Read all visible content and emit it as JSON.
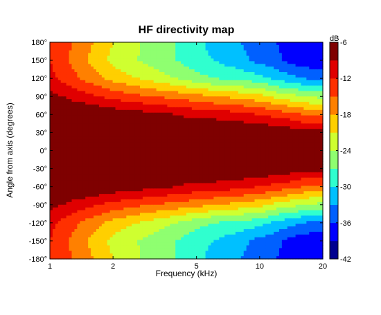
{
  "chart_data": {
    "type": "heatmap",
    "title": "HF directivity map",
    "xlabel": "Frequency (kHz)",
    "ylabel": "Angle from axis (degrees)",
    "x_scale": "log",
    "xlim": [
      1,
      20
    ],
    "ylim": [
      -180,
      180
    ],
    "x_ticks": [
      1,
      2,
      5,
      10,
      20
    ],
    "x_tick_labels": [
      "1",
      "2",
      "5",
      "10",
      "20"
    ],
    "y_ticks": [
      180,
      150,
      120,
      90,
      60,
      30,
      0,
      -30,
      -60,
      -90,
      -120,
      -150,
      -180
    ],
    "y_tick_labels": [
      "180°",
      "150°",
      "120°",
      "90°",
      "60°",
      "30°",
      "0°",
      "-30°",
      "-60°",
      "-90°",
      "-120°",
      "-150°",
      "-180°"
    ],
    "colorbar": {
      "unit": "dB",
      "range": [
        -42,
        -6
      ],
      "ticks": [
        -6,
        -12,
        -18,
        -24,
        -30,
        -36,
        -42
      ],
      "tick_labels": [
        "-6",
        "-12",
        "-18",
        "-24",
        "-30",
        "-36",
        "-42"
      ],
      "levels": 12,
      "colors": [
        "#00008f",
        "#0000ff",
        "#0060ff",
        "#00c0ff",
        "#30ffcf",
        "#8fff70",
        "#cfff30",
        "#ffcf00",
        "#ff8000",
        "#ff3000",
        "#e00000",
        "#7f0000"
      ]
    },
    "frequency_khz": [
      1,
      1.5,
      2,
      3,
      4,
      5,
      6,
      8,
      10,
      12,
      14,
      16,
      20
    ],
    "angle_deg": [
      0,
      30,
      60,
      90,
      120,
      150,
      180
    ],
    "level_db": [
      [
        -6,
        -6,
        -6,
        -6,
        -6,
        -6,
        -6,
        -6,
        -6,
        -6,
        -6,
        -6,
        -6
      ],
      [
        -6,
        -6,
        -6,
        -6,
        -6,
        -6,
        -6,
        -6,
        -6,
        -7,
        -7,
        -8,
        -8
      ],
      [
        -6,
        -6,
        -7,
        -8,
        -9,
        -10,
        -10,
        -11,
        -12,
        -13,
        -14,
        -15,
        -16
      ],
      [
        -8,
        -11,
        -13,
        -15,
        -16,
        -17,
        -18,
        -19,
        -20,
        -22,
        -23,
        -24,
        -25
      ],
      [
        -11,
        -16,
        -19,
        -22,
        -24,
        -26,
        -27,
        -28,
        -29,
        -31,
        -32,
        -33,
        -34
      ],
      [
        -12,
        -18,
        -22,
        -25,
        -27,
        -29,
        -30,
        -32,
        -34,
        -35,
        -37,
        -38,
        -38
      ],
      [
        -12,
        -17,
        -21,
        -25,
        -27,
        -29,
        -31,
        -33,
        -34,
        -36,
        -38,
        -39,
        -39
      ]
    ]
  }
}
